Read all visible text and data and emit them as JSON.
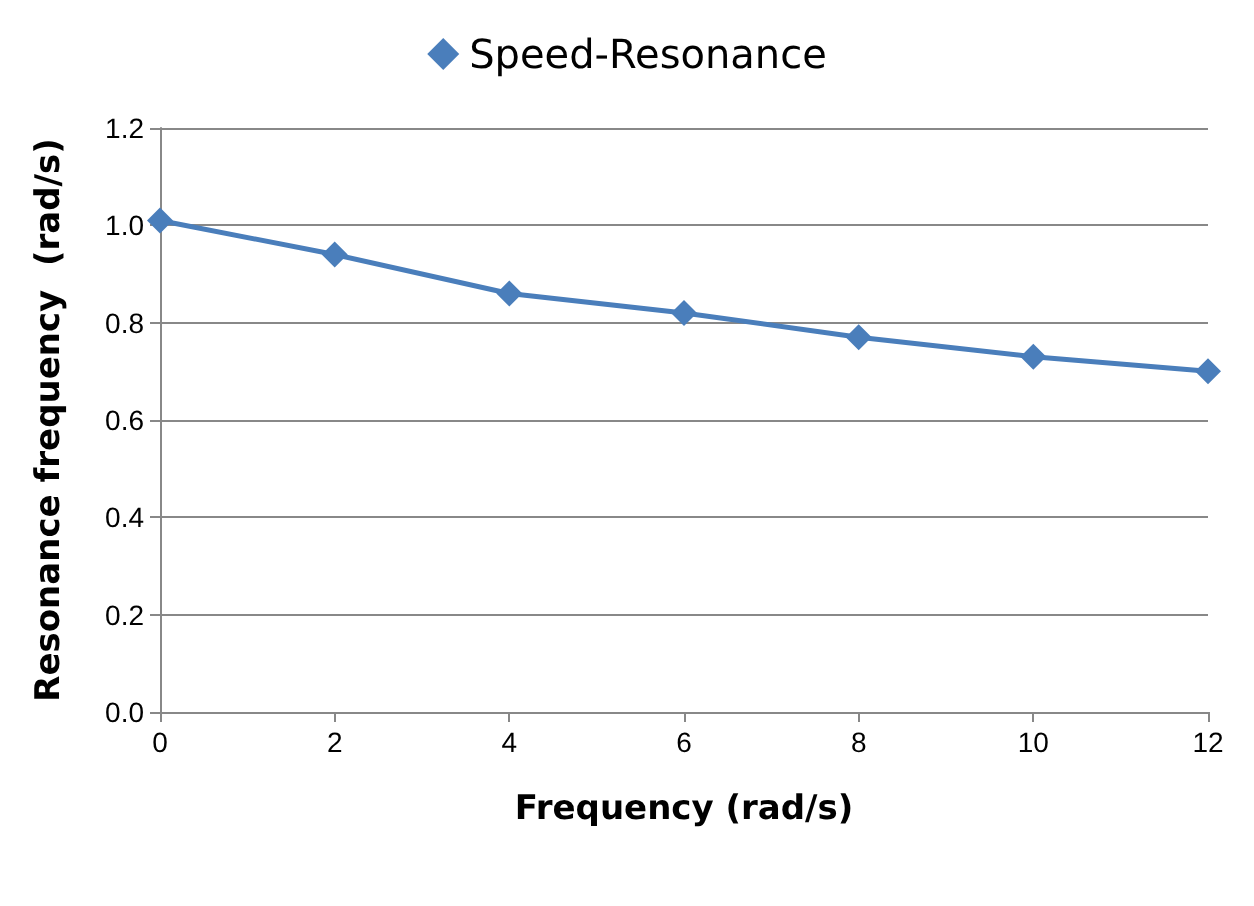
{
  "chart_data": {
    "type": "line",
    "xlabel": "Frequency (rad/s)",
    "ylabel": "Resonance frequency  (rad/s)",
    "x": [
      0,
      2,
      4,
      6,
      8,
      10,
      12
    ],
    "series": [
      {
        "name": "Speed-Resonance",
        "color": "#4a7ebb",
        "values": [
          1.01,
          0.94,
          0.86,
          0.82,
          0.77,
          0.73,
          0.7
        ]
      }
    ],
    "xlim": [
      0,
      12
    ],
    "xticks": [
      0,
      2,
      4,
      6,
      8,
      10,
      12
    ],
    "ylim": [
      0,
      1.2
    ],
    "yticks": [
      {
        "value": 0,
        "label": "0.0"
      },
      0.2,
      0.4,
      0.6,
      0.8,
      {
        "value": 1,
        "label": "1.0"
      },
      {
        "value": 1.2,
        "label": "1.2"
      }
    ],
    "grid": "y",
    "legend": "top",
    "marker": "diamond",
    "line_style": "solid"
  }
}
